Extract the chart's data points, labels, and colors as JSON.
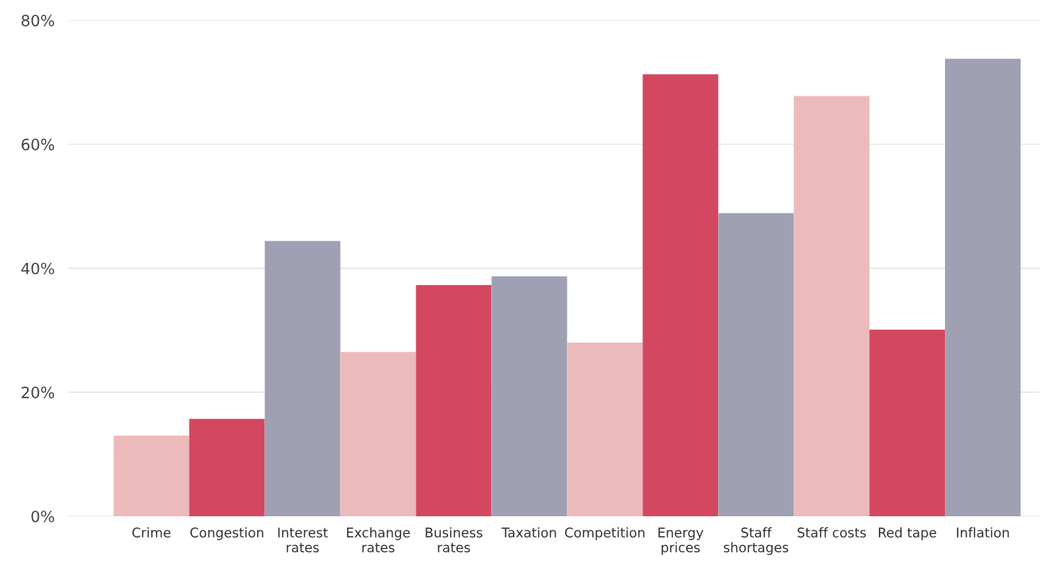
{
  "chart_data": {
    "type": "bar",
    "categories": [
      "Crime",
      "Congestion",
      "Interest\nrates",
      "Exchange\nrates",
      "Business\nrates",
      "Taxation",
      "Competition",
      "Energy\nprices",
      "Staff\nshortages",
      "Staff costs",
      "Red tape",
      "Inflation"
    ],
    "values": [
      13,
      15.7,
      44.4,
      26.5,
      37.3,
      38.7,
      28,
      71.3,
      48.9,
      67.8,
      30.1,
      73.8
    ],
    "colors": [
      "#ecbaba",
      "#d34760",
      "#a0a0b5",
      "#ecbaba",
      "#d34760",
      "#a0a0b5",
      "#ecbaba",
      "#d34760",
      "#a0a0b5",
      "#ecbaba",
      "#d34760",
      "#a0a0b5"
    ],
    "ylim": [
      0,
      80
    ],
    "yticks": [
      {
        "value": 0,
        "label": "0%"
      },
      {
        "value": 20,
        "label": "20%"
      },
      {
        "value": 40,
        "label": "40%"
      },
      {
        "value": 60,
        "label": "60%"
      },
      {
        "value": 80,
        "label": "80%"
      }
    ],
    "grid": "y"
  }
}
